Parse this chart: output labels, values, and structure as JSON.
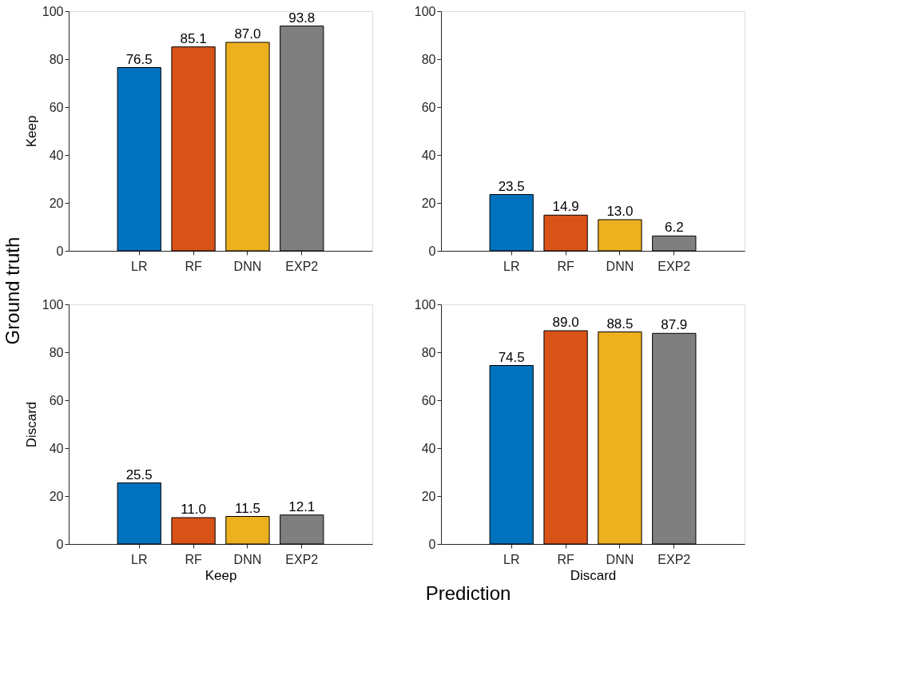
{
  "chart_data": [
    {
      "type": "bar",
      "ylabel": "Keep",
      "categories": [
        "LR",
        "RF",
        "DNN",
        "EXP2"
      ],
      "values": [
        76.5,
        85.1,
        87.0,
        93.8
      ],
      "value_labels": [
        "76.5",
        "85.1",
        "87.0",
        "93.8"
      ],
      "colors": [
        "#0072bd",
        "#d95319",
        "#edb120",
        "#7f7f7f"
      ],
      "ylim": [
        0,
        100
      ],
      "yticks": [
        0,
        20,
        40,
        60,
        80,
        100
      ],
      "grid": false,
      "annotations": [
        "Ground truth",
        "Prediction"
      ]
    },
    {
      "type": "bar",
      "categories": [
        "LR",
        "RF",
        "DNN",
        "EXP2"
      ],
      "values": [
        23.5,
        14.9,
        13.0,
        6.2
      ],
      "value_labels": [
        "23.5",
        "14.9",
        "13.0",
        "6.2"
      ],
      "colors": [
        "#0072bd",
        "#d95319",
        "#edb120",
        "#7f7f7f"
      ],
      "ylim": [
        0,
        100
      ],
      "yticks": [
        0,
        20,
        40,
        60,
        80,
        100
      ],
      "grid": false
    },
    {
      "type": "bar",
      "ylabel": "Discard",
      "xlabel": "Keep",
      "categories": [
        "LR",
        "RF",
        "DNN",
        "EXP2"
      ],
      "values": [
        25.5,
        11.0,
        11.5,
        12.1
      ],
      "value_labels": [
        "25.5",
        "11.0",
        "11.5",
        "12.1"
      ],
      "colors": [
        "#0072bd",
        "#d95319",
        "#edb120",
        "#7f7f7f"
      ],
      "ylim": [
        0,
        100
      ],
      "yticks": [
        0,
        20,
        40,
        60,
        80,
        100
      ],
      "grid": false
    },
    {
      "type": "bar",
      "xlabel": "Discard",
      "categories": [
        "LR",
        "RF",
        "DNN",
        "EXP2"
      ],
      "values": [
        74.5,
        89.0,
        88.5,
        87.9
      ],
      "value_labels": [
        "74.5",
        "89.0",
        "88.5",
        "87.9"
      ],
      "colors": [
        "#0072bd",
        "#d95319",
        "#edb120",
        "#7f7f7f"
      ],
      "ylim": [
        0,
        100
      ],
      "yticks": [
        0,
        20,
        40,
        60,
        80,
        100
      ],
      "grid": false
    }
  ]
}
